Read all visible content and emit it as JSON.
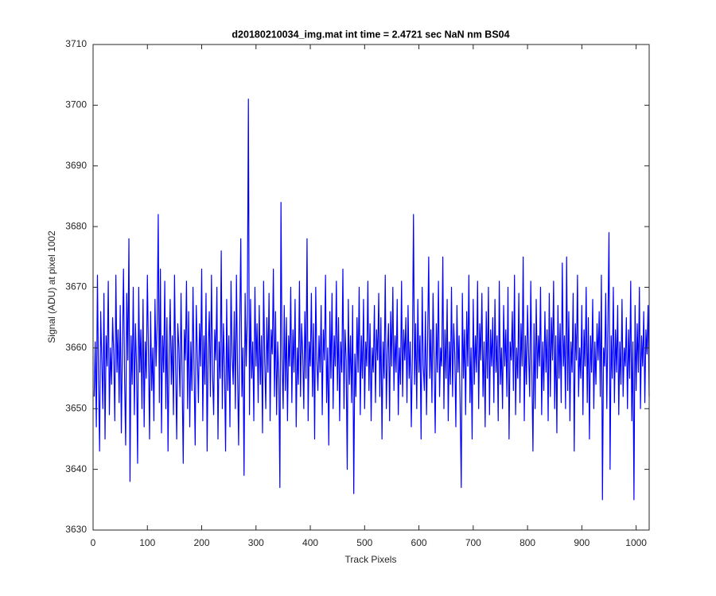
{
  "chart_data": {
    "type": "line",
    "title": "d20180210034_img.mat int time = 2.4721 sec  NaN nm BS04",
    "x_label": "Track Pixels",
    "y_label": "Signal (ADU) at pixel 1002",
    "xlim": [
      0,
      1024
    ],
    "ylim": [
      3630,
      3710
    ],
    "xticks": [
      0,
      100,
      200,
      300,
      400,
      500,
      600,
      700,
      800,
      900,
      1000
    ],
    "yticks": [
      3630,
      3640,
      3650,
      3660,
      3670,
      3680,
      3690,
      3700,
      3710
    ],
    "grid": false,
    "x": [
      2,
      4,
      6,
      8,
      10,
      12,
      14,
      16,
      18,
      20,
      22,
      24,
      26,
      28,
      30,
      32,
      34,
      36,
      38,
      40,
      42,
      44,
      46,
      48,
      50,
      52,
      54,
      56,
      58,
      60,
      62,
      64,
      66,
      68,
      70,
      72,
      74,
      76,
      78,
      80,
      82,
      84,
      86,
      88,
      90,
      92,
      94,
      96,
      98,
      100,
      102,
      104,
      106,
      108,
      110,
      112,
      114,
      116,
      118,
      120,
      122,
      124,
      126,
      128,
      130,
      132,
      134,
      136,
      138,
      140,
      142,
      144,
      146,
      148,
      150,
      152,
      154,
      156,
      158,
      160,
      162,
      164,
      166,
      168,
      170,
      172,
      174,
      176,
      178,
      180,
      182,
      184,
      186,
      188,
      190,
      192,
      194,
      196,
      198,
      200,
      202,
      204,
      206,
      208,
      210,
      212,
      214,
      216,
      218,
      220,
      222,
      224,
      226,
      228,
      230,
      232,
      234,
      236,
      238,
      240,
      242,
      244,
      246,
      248,
      250,
      252,
      254,
      256,
      258,
      260,
      262,
      264,
      266,
      268,
      270,
      272,
      274,
      276,
      278,
      280,
      282,
      284,
      286,
      288,
      290,
      292,
      294,
      296,
      298,
      300,
      302,
      304,
      306,
      308,
      310,
      312,
      314,
      316,
      318,
      320,
      322,
      324,
      326,
      328,
      330,
      332,
      334,
      336,
      338,
      340,
      342,
      344,
      346,
      348,
      350,
      352,
      354,
      356,
      358,
      360,
      362,
      364,
      366,
      368,
      370,
      372,
      374,
      376,
      378,
      380,
      382,
      384,
      386,
      388,
      390,
      392,
      394,
      396,
      398,
      400,
      402,
      404,
      406,
      408,
      410,
      412,
      414,
      416,
      418,
      420,
      422,
      424,
      426,
      428,
      430,
      432,
      434,
      436,
      438,
      440,
      442,
      444,
      446,
      448,
      450,
      452,
      454,
      456,
      458,
      460,
      462,
      464,
      466,
      468,
      470,
      472,
      474,
      476,
      478,
      480,
      482,
      484,
      486,
      488,
      490,
      492,
      494,
      496,
      498,
      500,
      502,
      504,
      506,
      508,
      510,
      512,
      514,
      516,
      518,
      520,
      522,
      524,
      526,
      528,
      530,
      532,
      534,
      536,
      538,
      540,
      542,
      544,
      546,
      548,
      550,
      552,
      554,
      556,
      558,
      560,
      562,
      564,
      566,
      568,
      570,
      572,
      574,
      576,
      578,
      580,
      582,
      584,
      586,
      588,
      590,
      592,
      594,
      596,
      598,
      600,
      602,
      604,
      606,
      608,
      610,
      612,
      614,
      616,
      618,
      620,
      622,
      624,
      626,
      628,
      630,
      632,
      634,
      636,
      638,
      640,
      642,
      644,
      646,
      648,
      650,
      652,
      654,
      656,
      658,
      660,
      662,
      664,
      666,
      668,
      670,
      672,
      674,
      676,
      678,
      680,
      682,
      684,
      686,
      688,
      690,
      692,
      694,
      696,
      698,
      700,
      702,
      704,
      706,
      708,
      710,
      712,
      714,
      716,
      718,
      720,
      722,
      724,
      726,
      728,
      730,
      732,
      734,
      736,
      738,
      740,
      742,
      744,
      746,
      748,
      750,
      752,
      754,
      756,
      758,
      760,
      762,
      764,
      766,
      768,
      770,
      772,
      774,
      776,
      778,
      780,
      782,
      784,
      786,
      788,
      790,
      792,
      794,
      796,
      798,
      800,
      802,
      804,
      806,
      808,
      810,
      812,
      814,
      816,
      818,
      820,
      822,
      824,
      826,
      828,
      830,
      832,
      834,
      836,
      838,
      840,
      842,
      844,
      846,
      848,
      850,
      852,
      854,
      856,
      858,
      860,
      862,
      864,
      866,
      868,
      870,
      872,
      874,
      876,
      878,
      880,
      882,
      884,
      886,
      888,
      890,
      892,
      894,
      896,
      898,
      900,
      902,
      904,
      906,
      908,
      910,
      912,
      914,
      916,
      918,
      920,
      922,
      924,
      926,
      928,
      930,
      932,
      934,
      936,
      938,
      940,
      942,
      944,
      946,
      948,
      950,
      952,
      954,
      956,
      958,
      960,
      962,
      964,
      966,
      968,
      970,
      972,
      974,
      976,
      978,
      980,
      982,
      984,
      986,
      988,
      990,
      992,
      994,
      996,
      998,
      1000,
      1002,
      1004,
      1006,
      1008,
      1010,
      1012,
      1014,
      1016,
      1018,
      1020,
      1022,
      1024
    ],
    "series": [
      {
        "color": "#0000ff",
        "values": [
          3652,
          3661,
          3647,
          3672,
          3655,
          3643,
          3666,
          3658,
          3650,
          3669,
          3645,
          3662,
          3657,
          3671,
          3649,
          3660,
          3654,
          3665,
          3659,
          3648,
          3672,
          3656,
          3663,
          3651,
          3667,
          3646,
          3660,
          3673,
          3655,
          3644,
          3669,
          3658,
          3678,
          3638,
          3662,
          3654,
          3670,
          3649,
          3664,
          3657,
          3641,
          3670,
          3656,
          3663,
          3650,
          3668,
          3647,
          3661,
          3655,
          3672,
          3659,
          3645,
          3666,
          3653,
          3660,
          3648,
          3668,
          3657,
          3664,
          3682,
          3651,
          3673,
          3646,
          3662,
          3656,
          3671,
          3650,
          3665,
          3643,
          3659,
          3668,
          3654,
          3662,
          3649,
          3672,
          3657,
          3645,
          3664,
          3660,
          3652,
          3669,
          3655,
          3641,
          3663,
          3658,
          3671,
          3650,
          3666,
          3647,
          3661,
          3653,
          3670,
          3656,
          3644,
          3667,
          3659,
          3651,
          3664,
          3657,
          3673,
          3648,
          3662,
          3654,
          3669,
          3643,
          3660,
          3666,
          3652,
          3672,
          3656,
          3649,
          3663,
          3658,
          3670,
          3645,
          3661,
          3655,
          3676,
          3650,
          3664,
          3657,
          3643,
          3668,
          3653,
          3662,
          3647,
          3671,
          3659,
          3654,
          3666,
          3650,
          3672,
          3656,
          3644,
          3663,
          3678,
          3652,
          3660,
          3639,
          3669,
          3657,
          3665,
          3701,
          3649,
          3668,
          3655,
          3661,
          3648,
          3670,
          3657,
          3664,
          3651,
          3667,
          3654,
          3662,
          3646,
          3671,
          3658,
          3650,
          3665,
          3656,
          3669,
          3648,
          3663,
          3659,
          3673,
          3652,
          3666,
          3649,
          3661,
          3655,
          3637,
          3684,
          3658,
          3650,
          3667,
          3653,
          3665,
          3648,
          3662,
          3657,
          3670,
          3651,
          3663,
          3656,
          3668,
          3647,
          3660,
          3654,
          3671,
          3652,
          3664,
          3659,
          3650,
          3666,
          3655,
          3678,
          3648,
          3661,
          3657,
          3669,
          3652,
          3664,
          3645,
          3670,
          3658,
          3653,
          3662,
          3656,
          3667,
          3649,
          3663,
          3658,
          3672,
          3651,
          3660,
          3644,
          3666,
          3655,
          3669,
          3650,
          3662,
          3657,
          3671,
          3653,
          3665,
          3648,
          3661,
          3656,
          3673,
          3650,
          3663,
          3658,
          3640,
          3668,
          3654,
          3662,
          3651,
          3667,
          3636,
          3659,
          3652,
          3665,
          3656,
          3670,
          3649,
          3662,
          3655,
          3668,
          3650,
          3661,
          3657,
          3671,
          3653,
          3664,
          3648,
          3660,
          3656,
          3667,
          3651,
          3663,
          3658,
          3669,
          3652,
          3665,
          3645,
          3661,
          3655,
          3672,
          3650,
          3659,
          3664,
          3648,
          3666,
          3657,
          3670,
          3653,
          3662,
          3656,
          3668,
          3649,
          3660,
          3654,
          3671,
          3652,
          3663,
          3658,
          3665,
          3651,
          3667,
          3655,
          3661,
          3647,
          3659,
          3682,
          3654,
          3664,
          3650,
          3668,
          3656,
          3662,
          3645,
          3670,
          3657,
          3653,
          3666,
          3649,
          3661,
          3675,
          3655,
          3663,
          3651,
          3669,
          3658,
          3646,
          3664,
          3656,
          3671,
          3652,
          3660,
          3657,
          3675,
          3650,
          3663,
          3655,
          3668,
          3648,
          3661,
          3654,
          3670,
          3652,
          3664,
          3659,
          3647,
          3667,
          3656,
          3662,
          3650,
          3637,
          3669,
          3655,
          3663,
          3649,
          3666,
          3657,
          3672,
          3651,
          3660,
          3645,
          3668,
          3654,
          3662,
          3656,
          3671,
          3650,
          3664,
          3658,
          3669,
          3652,
          3661,
          3647,
          3666,
          3655,
          3670,
          3649,
          3663,
          3657,
          3665,
          3651,
          3668,
          3656,
          3662,
          3648,
          3671,
          3654,
          3660,
          3650,
          3667,
          3657,
          3663,
          3652,
          3670,
          3645,
          3661,
          3658,
          3666,
          3653,
          3672,
          3649,
          3660,
          3655,
          3669,
          3651,
          3664,
          3657,
          3675,
          3648,
          3662,
          3654,
          3667,
          3659,
          3652,
          3671,
          3656,
          3643,
          3664,
          3650,
          3668,
          3655,
          3662,
          3657,
          3670,
          3649,
          3661,
          3653,
          3666,
          3656,
          3663,
          3648,
          3669,
          3652,
          3665,
          3658,
          3671,
          3650,
          3662,
          3646,
          3667,
          3655,
          3664,
          3651,
          3674,
          3657,
          3662,
          3650,
          3675,
          3653,
          3666,
          3648,
          3661,
          3656,
          3669,
          3643,
          3664,
          3658,
          3672,
          3652,
          3660,
          3655,
          3667,
          3649,
          3663,
          3657,
          3670,
          3651,
          3665,
          3645,
          3662,
          3656,
          3668,
          3650,
          3661,
          3654,
          3664,
          3658,
          3666,
          3652,
          3672,
          3635,
          3660,
          3657,
          3669,
          3650,
          3664,
          3679,
          3640,
          3662,
          3655,
          3670,
          3651,
          3663,
          3656,
          3667,
          3649,
          3661,
          3654,
          3668,
          3652,
          3660,
          3657,
          3665,
          3650,
          3663,
          3655,
          3671,
          3648,
          3661,
          3635,
          3667,
          3653,
          3664,
          3656,
          3670,
          3650,
          3662,
          3657,
          3666,
          3651,
          3663,
          3659,
          3667,
          3652
        ]
      }
    ]
  }
}
